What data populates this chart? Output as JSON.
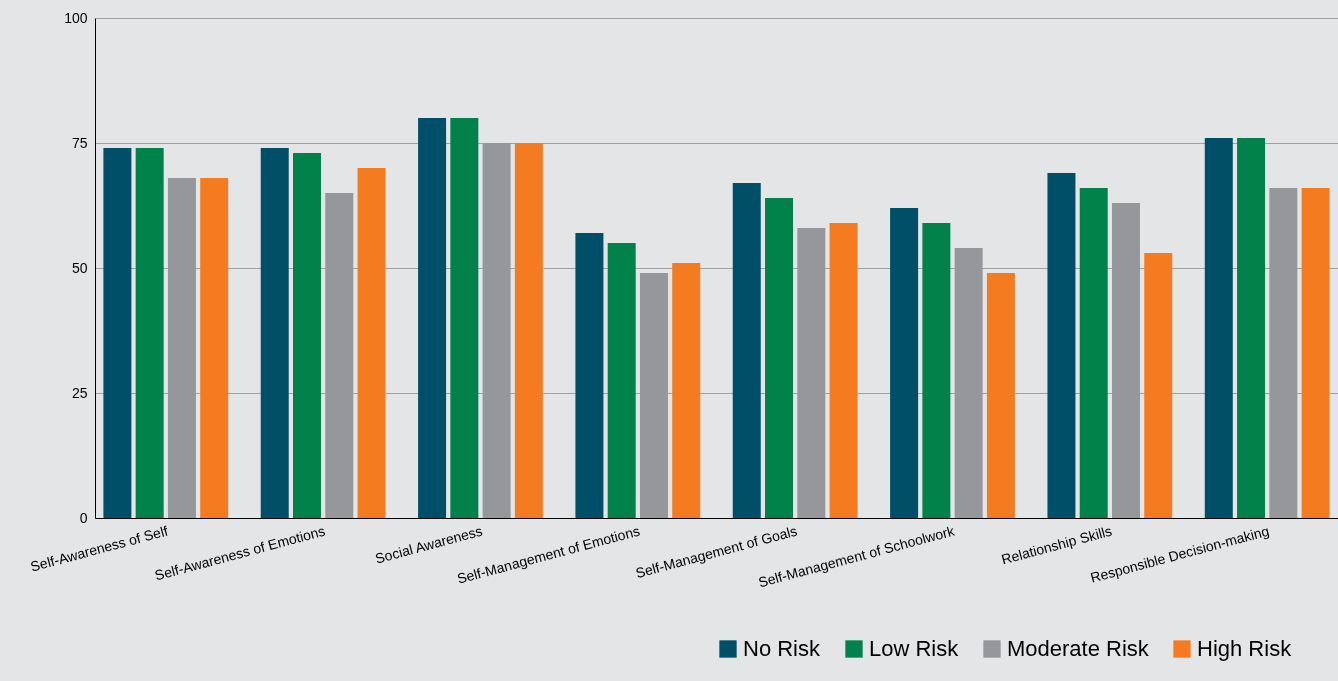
{
  "chart_data": {
    "type": "bar",
    "categories": [
      "Self-Awareness of Self",
      "Self-Awareness of Emotions",
      "Social Awareness",
      "Self-Management of Emotions",
      "Self-Management of Goals",
      "Self-Management of Schoolwork",
      "Relationship Skills",
      "Responsible Decision-making"
    ],
    "series": [
      {
        "name": "No Risk",
        "color": "#004f68",
        "values": [
          74,
          74,
          80,
          57,
          67,
          62,
          69,
          76
        ]
      },
      {
        "name": "Low Risk",
        "color": "#00824a",
        "values": [
          74,
          73,
          80,
          55,
          64,
          59,
          66,
          76
        ]
      },
      {
        "name": "Moderate Risk",
        "color": "#96979b",
        "values": [
          68,
          65,
          75,
          49,
          58,
          54,
          63,
          66
        ]
      },
      {
        "name": "High Risk",
        "color": "#f47b20",
        "values": [
          68,
          70,
          75,
          51,
          59,
          49,
          53,
          66
        ]
      }
    ],
    "ylim": [
      0,
      100
    ],
    "yticks": [
      0,
      25,
      50,
      75,
      100
    ],
    "grid": "y",
    "legend": "bottom right"
  }
}
